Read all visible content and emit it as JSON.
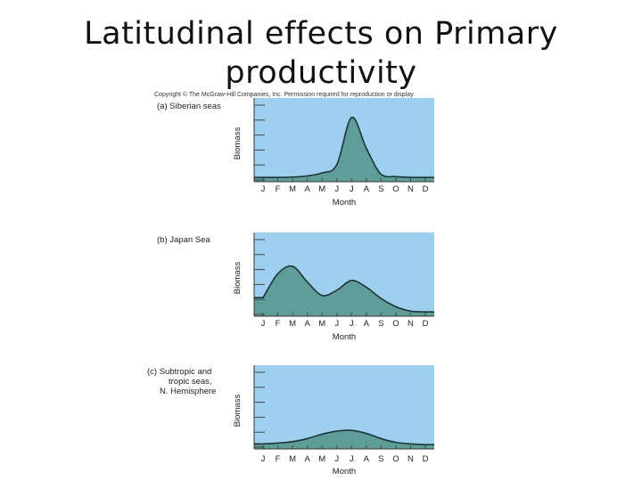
{
  "slide": {
    "title_line1": "Latitudinal effects on Primary",
    "title_line2": "productivity",
    "copyright": "Copyright © The McGraw-Hill Companies, Inc. Permission required for reproduction or display."
  },
  "colors": {
    "plot_background": "#9fcfee",
    "curve_fill": "#5f9e98",
    "curve_line": "#1d3438"
  },
  "chart_data": [
    {
      "type": "area",
      "panel_label": [
        "(a) Siberian seas"
      ],
      "xlabel": "Month",
      "ylabel": "Biomass",
      "categories": [
        "J",
        "F",
        "M",
        "A",
        "M",
        "J",
        "J",
        "A",
        "S",
        "O",
        "N",
        "D"
      ],
      "values": [
        1,
        1,
        1.5,
        3,
        7,
        18,
        81,
        40,
        5,
        2,
        1,
        1
      ],
      "ylim": [
        0,
        100
      ]
    },
    {
      "type": "area",
      "panel_label": [
        "(b) Japan Sea"
      ],
      "xlabel": "Month",
      "ylabel": "Biomass",
      "categories": [
        "J",
        "F",
        "M",
        "A",
        "M",
        "J",
        "J",
        "A",
        "S",
        "O",
        "N",
        "D"
      ],
      "values": [
        20,
        52,
        62,
        41,
        23,
        30,
        43,
        34,
        19,
        8,
        2,
        1
      ],
      "ylim": [
        0,
        100
      ]
    },
    {
      "type": "area",
      "panel_label": [
        "(c) Subtropic and",
        "tropic seas,",
        "N. Hemisphere"
      ],
      "xlabel": "Month",
      "ylabel": "Biomass",
      "categories": [
        "J",
        "F",
        "M",
        "A",
        "M",
        "J",
        "J",
        "A",
        "S",
        "O",
        "N",
        "D"
      ],
      "values": [
        2,
        3,
        5,
        9,
        15,
        19,
        20,
        16,
        9,
        4,
        2,
        1
      ],
      "ylim": [
        0,
        100
      ]
    }
  ]
}
